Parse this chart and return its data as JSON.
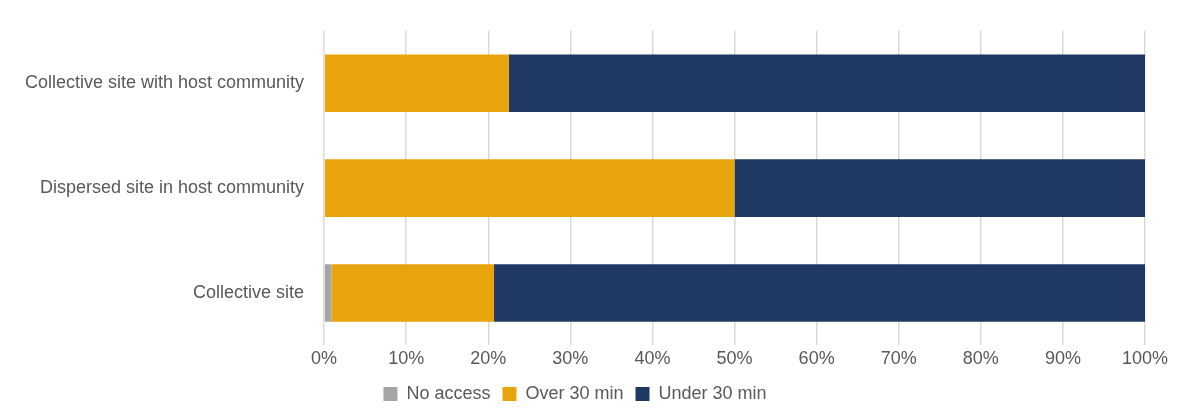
{
  "chart_data": {
    "type": "bar",
    "orientation": "horizontal",
    "stacked": true,
    "categories": [
      "Collective site with host community",
      "Dispersed site in host community",
      "Collective site"
    ],
    "series": [
      {
        "name": "No access",
        "color": "#a5a5a5",
        "values": [
          0,
          0,
          0.9
        ]
      },
      {
        "name": "Over 30 min",
        "color": "#e8a40c",
        "values": [
          22.5,
          50,
          19.8
        ]
      },
      {
        "name": "Under 30 min",
        "color": "#203864",
        "values": [
          77.5,
          50,
          79.3
        ]
      }
    ],
    "xlim": [
      0,
      100
    ],
    "xticks": [
      {
        "value": 0,
        "label": "0%"
      },
      {
        "value": 10,
        "label": "10%"
      },
      {
        "value": 20,
        "label": "20%"
      },
      {
        "value": 30,
        "label": "30%"
      },
      {
        "value": 40,
        "label": "40%"
      },
      {
        "value": 50,
        "label": "50%"
      },
      {
        "value": 60,
        "label": "60%"
      },
      {
        "value": 70,
        "label": "70%"
      },
      {
        "value": 80,
        "label": "80%"
      },
      {
        "value": 90,
        "label": "90%"
      },
      {
        "value": 100,
        "label": "100%"
      }
    ],
    "grid": "x",
    "legend": "bottom"
  }
}
